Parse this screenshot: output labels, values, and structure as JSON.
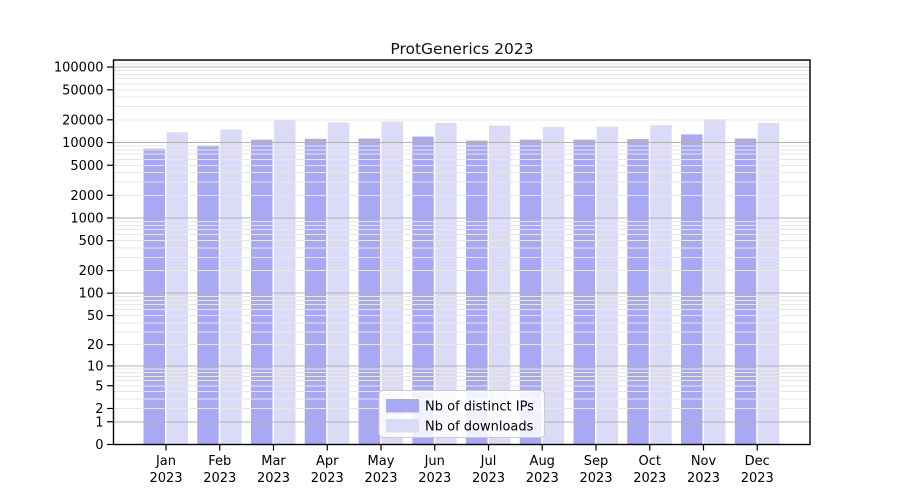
{
  "chart_data": {
    "type": "bar",
    "title": "ProtGenerics 2023",
    "categories": [
      "Jan 2023",
      "Feb 2023",
      "Mar 2023",
      "Apr 2023",
      "May 2023",
      "Jun 2023",
      "Jul 2023",
      "Aug 2023",
      "Sep 2023",
      "Oct 2023",
      "Nov 2023",
      "Dec 2023"
    ],
    "series": [
      {
        "name": "Nb of distinct IPs",
        "color": "#a8a8f5",
        "values": [
          8300,
          9200,
          10900,
          11200,
          11300,
          12000,
          10600,
          10900,
          10900,
          11100,
          12800,
          11300
        ]
      },
      {
        "name": "Nb of downloads",
        "color": "#dbdbf8",
        "values": [
          13700,
          15000,
          20100,
          18400,
          19000,
          18200,
          16800,
          16100,
          16300,
          17000,
          20400,
          18200
        ]
      }
    ],
    "yscale": "log1p",
    "yticks": [
      0,
      1,
      2,
      5,
      10,
      20,
      50,
      100,
      200,
      500,
      1000,
      2000,
      5000,
      10000,
      20000,
      50000,
      100000
    ],
    "ylim": [
      0,
      124000
    ],
    "xlabel": "",
    "ylabel": "",
    "grid": true,
    "legend_position": "lower center"
  },
  "colors": {
    "bar_ips": "#a8a8f5",
    "bar_downloads": "#dbdbf8",
    "grid_major": "#b2b2b2",
    "grid_minor": "#e7e7e7",
    "spine": "#000000",
    "tick_label": "#000000",
    "legend_border": "#cccccc",
    "legend_bg": "rgba(255,255,255,0.85)"
  }
}
